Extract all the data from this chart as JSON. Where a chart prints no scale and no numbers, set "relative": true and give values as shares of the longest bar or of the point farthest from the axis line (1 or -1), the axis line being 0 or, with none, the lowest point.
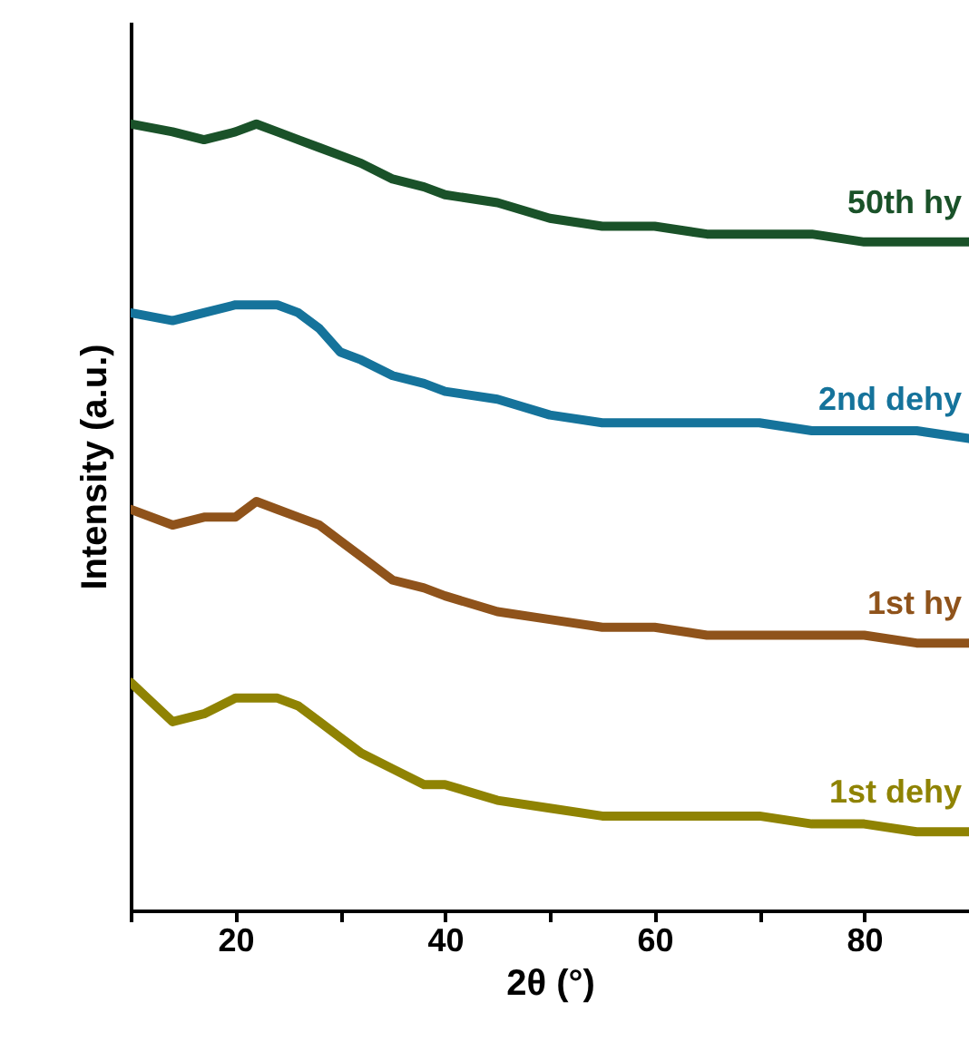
{
  "chart_data": {
    "type": "line",
    "xlabel": "2θ (°)",
    "ylabel": "Intensity (a.u.)",
    "relative": true,
    "grid": false,
    "marker": "none",
    "line_style": "solid",
    "xlim": [
      10,
      90
    ],
    "xticks": [
      {
        "value": 10,
        "label": null
      },
      20,
      {
        "value": 30,
        "label": null
      },
      40,
      {
        "value": 50,
        "label": null
      },
      60,
      {
        "value": 70,
        "label": null
      },
      80
    ],
    "x": [
      10,
      14,
      17,
      20,
      22,
      24,
      26,
      28,
      30,
      32,
      35,
      38,
      40,
      45,
      50,
      55,
      60,
      65,
      70,
      75,
      80,
      85,
      90
    ],
    "series": [
      {
        "name": "50th hy",
        "color": "#1a5229",
        "values": [
          1.0,
          0.99,
          0.98,
          0.99,
          1.0,
          0.99,
          0.98,
          0.97,
          0.96,
          0.95,
          0.93,
          0.92,
          0.91,
          0.9,
          0.88,
          0.87,
          0.87,
          0.86,
          0.86,
          0.86,
          0.85,
          0.85,
          0.85
        ]
      },
      {
        "name": "2nd dehy",
        "color": "#15739b",
        "values": [
          0.76,
          0.75,
          0.76,
          0.77,
          0.77,
          0.77,
          0.76,
          0.74,
          0.71,
          0.7,
          0.68,
          0.67,
          0.66,
          0.65,
          0.63,
          0.62,
          0.62,
          0.62,
          0.62,
          0.61,
          0.61,
          0.61,
          0.6
        ]
      },
      {
        "name": "1st hy",
        "color": "#8f531b",
        "values": [
          0.51,
          0.49,
          0.5,
          0.5,
          0.52,
          0.51,
          0.5,
          0.49,
          0.47,
          0.45,
          0.42,
          0.41,
          0.4,
          0.38,
          0.37,
          0.36,
          0.36,
          0.35,
          0.35,
          0.35,
          0.35,
          0.34,
          0.34
        ]
      },
      {
        "name": "1st dehy",
        "color": "#8f8303",
        "values": [
          0.29,
          0.24,
          0.25,
          0.27,
          0.27,
          0.27,
          0.26,
          0.24,
          0.22,
          0.2,
          0.18,
          0.16,
          0.16,
          0.14,
          0.13,
          0.12,
          0.12,
          0.12,
          0.12,
          0.11,
          0.11,
          0.1,
          0.1
        ]
      }
    ]
  }
}
